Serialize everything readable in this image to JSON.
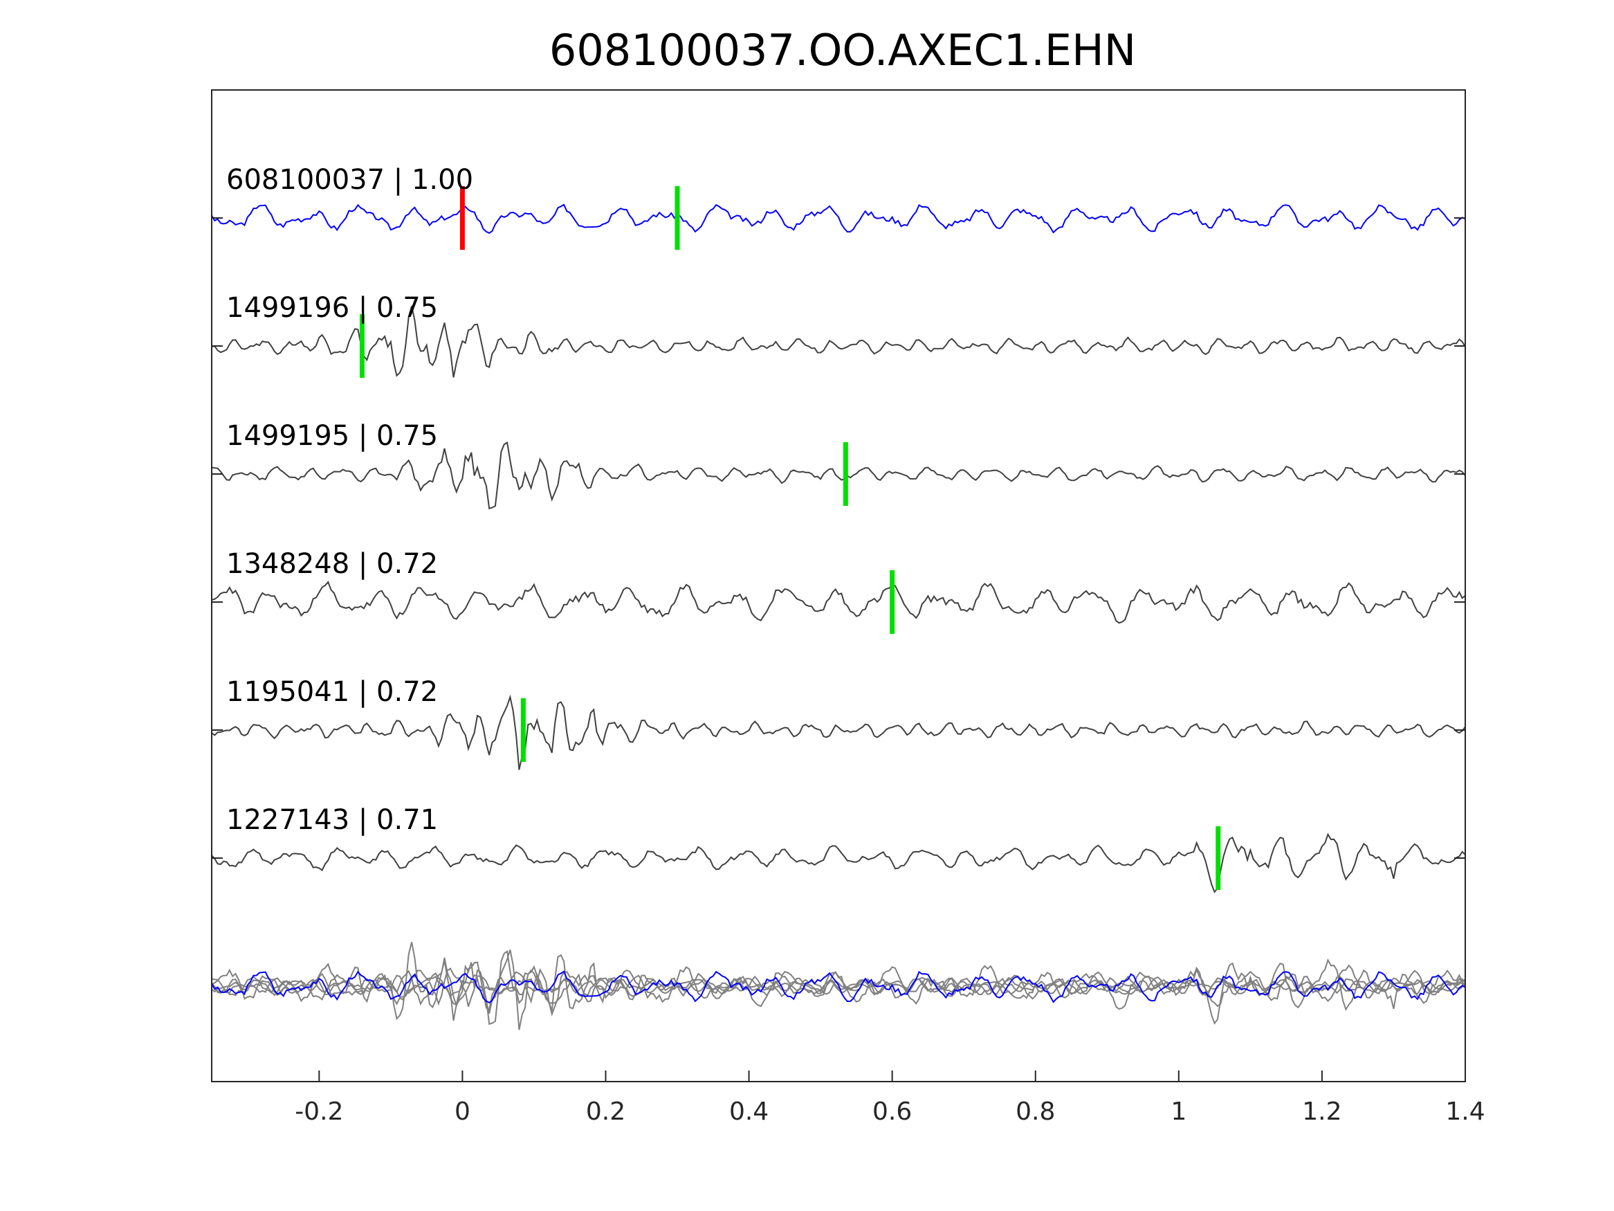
{
  "chart_data": {
    "type": "line",
    "title": "608100037.OO.AXEC1.EHN",
    "xlabel": "",
    "ylabel": "",
    "xlim": [
      -0.35,
      1.4
    ],
    "x_ticks": [
      -0.2,
      0,
      0.2,
      0.4,
      0.6,
      0.8,
      1,
      1.2,
      1.4
    ],
    "x_tick_labels": [
      "-0.2",
      "0",
      "0.2",
      "0.4",
      "0.6",
      "0.8",
      "1",
      "1.2",
      "1.4"
    ],
    "grid": false,
    "legend": "none",
    "colors": {
      "template": "#0000ff",
      "match": "#404040",
      "stack_match": "#808080",
      "pick_red": "#ff0000",
      "pick_green": "#00e000",
      "axes": "#262626"
    },
    "traces": [
      {
        "label": "608100037 | 1.00",
        "id": "608100037",
        "cc": 1.0,
        "role": "template",
        "amplitude": 0.55,
        "freq": 14,
        "envelope": "noise",
        "seed": 3,
        "picks": [
          {
            "t": 0.0,
            "color": "red"
          },
          {
            "t": 0.3,
            "color": "green"
          }
        ]
      },
      {
        "label": "1499196 | 0.75",
        "id": "1499196",
        "cc": 0.75,
        "role": "match",
        "amplitude": 1.0,
        "freq": 24,
        "envelope": "burst",
        "burst_center": -0.05,
        "seed": 11,
        "picks": [
          {
            "t": -0.14,
            "color": "green"
          }
        ]
      },
      {
        "label": "1499195 | 0.75",
        "id": "1499195",
        "cc": 0.75,
        "role": "match",
        "amplitude": 1.0,
        "freq": 22,
        "envelope": "burst",
        "burst_center": 0.05,
        "seed": 17,
        "picks": [
          {
            "t": 0.535,
            "color": "green"
          }
        ]
      },
      {
        "label": "1348248 | 0.72",
        "id": "1348248",
        "cc": 0.72,
        "role": "match",
        "amplitude": 0.75,
        "freq": 14,
        "envelope": "noise",
        "seed": 23,
        "picks": [
          {
            "t": 0.6,
            "color": "green"
          }
        ]
      },
      {
        "label": "1195041 | 0.72",
        "id": "1195041",
        "cc": 0.72,
        "role": "match",
        "amplitude": 1.0,
        "freq": 26,
        "envelope": "burst",
        "burst_center": 0.1,
        "seed": 31,
        "picks": [
          {
            "t": 0.085,
            "color": "green"
          }
        ]
      },
      {
        "label": "1227143 | 0.71",
        "id": "1227143",
        "cc": 0.71,
        "role": "match",
        "amplitude": 0.6,
        "freq": 16,
        "envelope": "late",
        "seed": 41,
        "picks": [
          {
            "t": 1.055,
            "color": "green"
          }
        ]
      }
    ]
  }
}
